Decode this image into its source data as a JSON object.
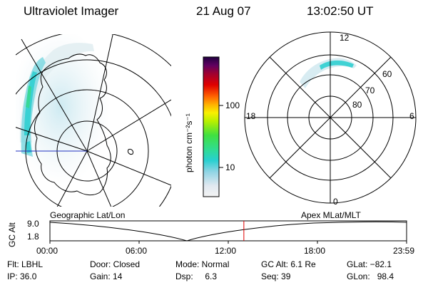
{
  "header": {
    "title": "Ultraviolet Imager",
    "date": "21 Aug 07",
    "time": "13:02:50 UT"
  },
  "colorbar": {
    "unit_label": "photon cm⁻²s⁻¹",
    "ticks": [
      "100",
      "10"
    ]
  },
  "polar_plot": {
    "clock_labels": {
      "top": "12",
      "left": "18",
      "right": "6",
      "bottom": "0"
    },
    "lat_labels": [
      "60",
      "70",
      "80"
    ]
  },
  "timeline": {
    "left_title": "Geographic Lat/Lon",
    "right_title": "Apex MLat/MLT",
    "y_axis_label": "GC Alt",
    "y_ticks": [
      "9.0",
      "1.8"
    ],
    "x_ticks": [
      "00:00",
      "06:00",
      "12:00",
      "18:00",
      "23:59"
    ],
    "current_time_fraction": 0.5437,
    "marker_color": "#e00000"
  },
  "status": {
    "filter": "Flt: LBHL",
    "ip": "IP: 36.0",
    "door": "Door: Closed",
    "gain": "Gain: 14",
    "mode": "Mode: Normal",
    "dsp": "Dsp:     6.3",
    "gc_alt": "GC Alt: 6.1 Re",
    "seq": "Seq: 39",
    "glat": "GLat: −82.1",
    "glon": "GLon:   98.4"
  }
}
